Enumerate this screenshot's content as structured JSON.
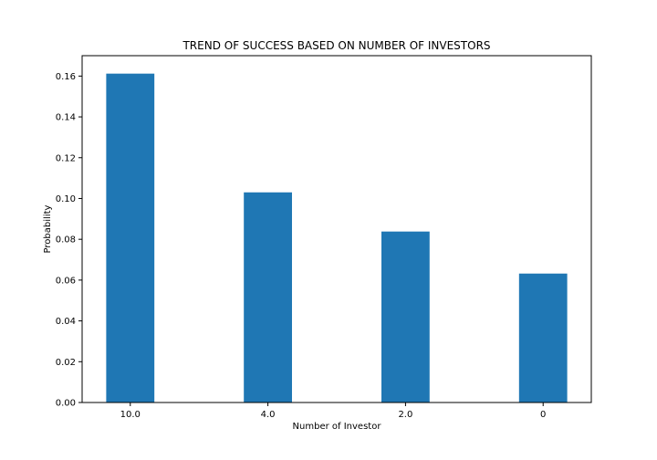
{
  "chart_data": {
    "type": "bar",
    "title": "TREND OF SUCCESS BASED ON NUMBER OF INVESTORS",
    "xlabel": "Number of Investor",
    "ylabel": "Probability",
    "categories": [
      "10.0",
      "4.0",
      "2.0",
      "0"
    ],
    "values": [
      0.1612,
      0.103,
      0.0838,
      0.0632
    ],
    "ylim": [
      0,
      0.17
    ],
    "yticks": [
      "0.00",
      "0.02",
      "0.04",
      "0.06",
      "0.08",
      "0.10",
      "0.12",
      "0.14",
      "0.16"
    ],
    "grid": false,
    "bar_color": "#1f77b4"
  }
}
